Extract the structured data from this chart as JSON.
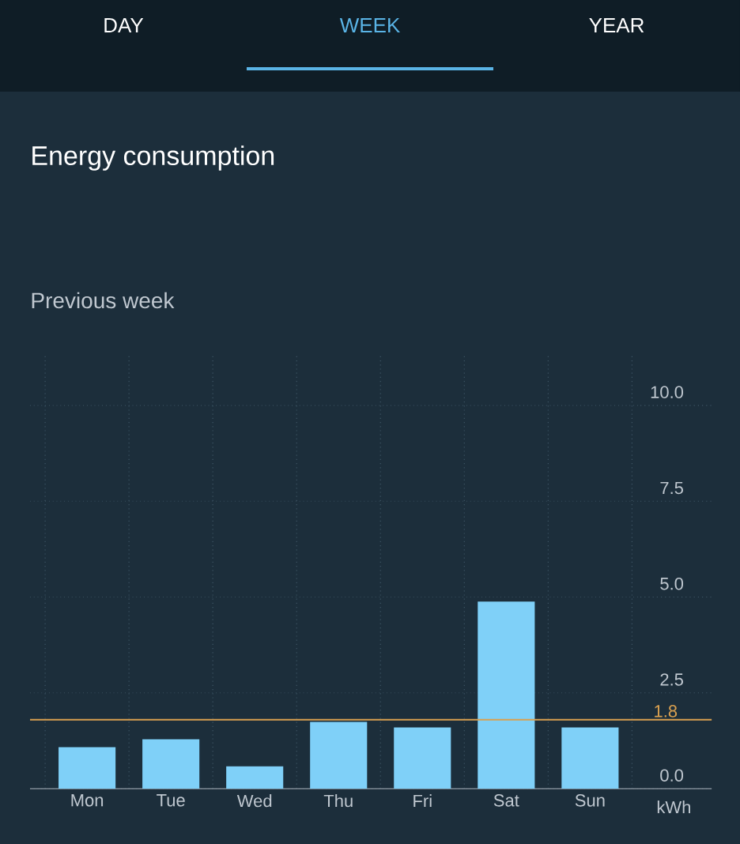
{
  "chart_data": {
    "type": "bar",
    "title": "Energy consumption",
    "subtitle": "Previous week",
    "ylabel": "kWh",
    "annotations": [
      "DAY",
      "WEEK",
      "YEAR"
    ],
    "categories": [
      "Mon",
      "Tue",
      "Wed",
      "Thu",
      "Fri",
      "Sat",
      "Sun"
    ],
    "values": [
      1.08,
      1.29,
      0.58,
      1.74,
      1.6,
      4.88,
      1.6
    ],
    "color": "#7fd0f8",
    "ylim": [
      0,
      11.3
    ],
    "yticks": [
      {
        "value": 0,
        "label": "0.0"
      },
      {
        "value": 2.5,
        "label": "2.5"
      },
      {
        "value": 5,
        "label": "5.0"
      },
      {
        "value": 7.5,
        "label": "7.5"
      },
      {
        "value": 10,
        "label": "10.0"
      }
    ],
    "ref_lines": [
      {
        "axis": "y",
        "value": 1.8,
        "label": "1.8",
        "color": "#d9a050"
      }
    ],
    "grid": true
  }
}
